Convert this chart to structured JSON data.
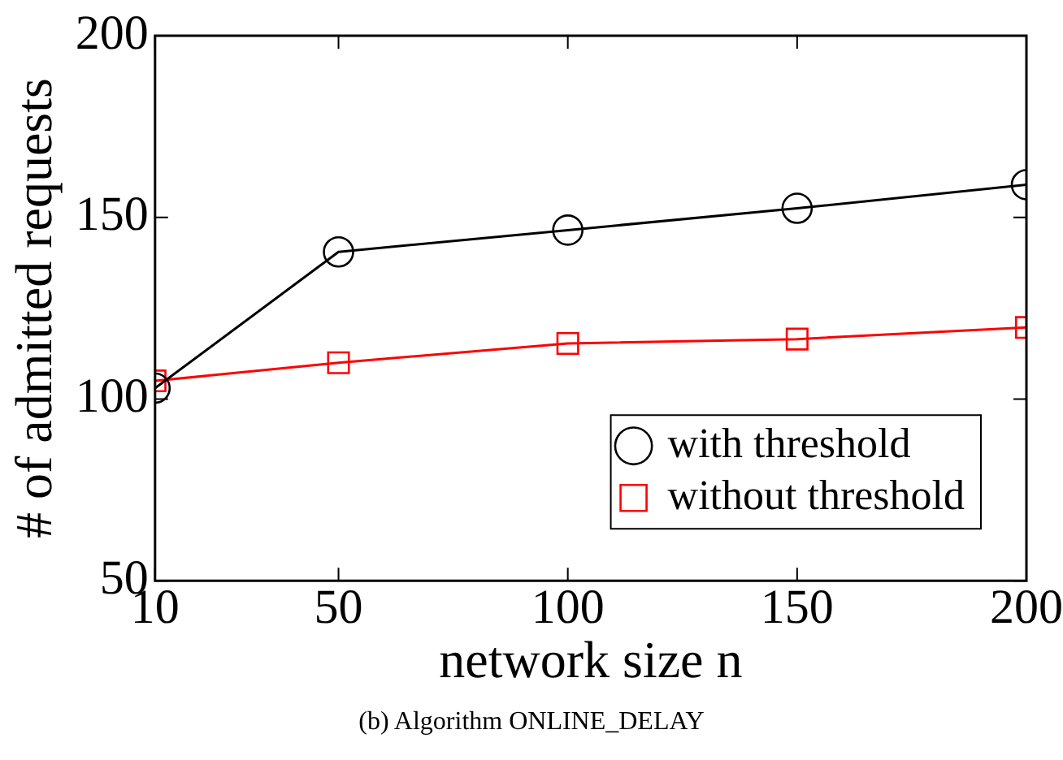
{
  "chart_data": {
    "type": "line",
    "xlabel": "network size n",
    "ylabel": "# of admitted requests",
    "x": [
      10,
      50,
      100,
      150,
      200
    ],
    "series": [
      {
        "name": "with threshold",
        "color": "#000000",
        "marker": "circle",
        "values": [
          103,
          140.5,
          146.5,
          152.5,
          159
        ]
      },
      {
        "name": "without threshold",
        "color": "#ff0000",
        "marker": "square",
        "values": [
          105,
          110,
          115.3,
          116.5,
          119.7
        ]
      }
    ],
    "xlim": [
      10,
      200
    ],
    "xticks": [
      10,
      50,
      100,
      150,
      200
    ],
    "ylim": [
      50,
      200
    ],
    "yticks": [
      50,
      100,
      150,
      200
    ],
    "grid": false,
    "legend": "bottom right",
    "line_style": "solid",
    "annotations": [
      "(b) Algorithm ONLINE_DELAY"
    ]
  }
}
